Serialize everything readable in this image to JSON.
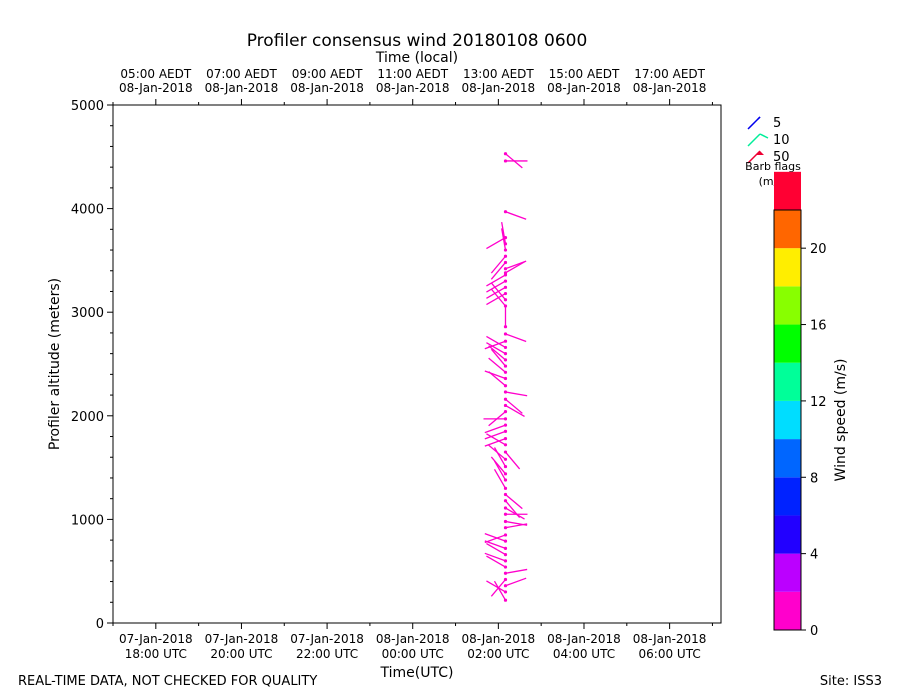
{
  "chart_data": {
    "type": "scatter",
    "title": "Profiler consensus wind 20180108 0600",
    "top_axis_label": "Time (local)",
    "xlabel": "Time(UTC)",
    "ylabel": "Profiler altitude (meters)",
    "ylim": [
      0,
      5000
    ],
    "y_ticks": [
      "0",
      "1000",
      "2000",
      "3000",
      "4000",
      "5000"
    ],
    "x_ticks_utc": [
      {
        "line1": "07-Jan-2018",
        "line2": "18:00 UTC"
      },
      {
        "line1": "07-Jan-2018",
        "line2": "20:00 UTC"
      },
      {
        "line1": "07-Jan-2018",
        "line2": "22:00 UTC"
      },
      {
        "line1": "08-Jan-2018",
        "line2": "00:00 UTC"
      },
      {
        "line1": "08-Jan-2018",
        "line2": "02:00 UTC"
      },
      {
        "line1": "08-Jan-2018",
        "line2": "04:00 UTC"
      },
      {
        "line1": "08-Jan-2018",
        "line2": "06:00 UTC"
      }
    ],
    "x_ticks_local": [
      {
        "line1": "05:00 AEDT",
        "line2": "08-Jan-2018"
      },
      {
        "line1": "07:00 AEDT",
        "line2": "08-Jan-2018"
      },
      {
        "line1": "09:00 AEDT",
        "line2": "08-Jan-2018"
      },
      {
        "line1": "11:00 AEDT",
        "line2": "08-Jan-2018"
      },
      {
        "line1": "13:00 AEDT",
        "line2": "08-Jan-2018"
      },
      {
        "line1": "15:00 AEDT",
        "line2": "08-Jan-2018"
      },
      {
        "line1": "17:00 AEDT",
        "line2": "08-Jan-2018"
      }
    ],
    "profile_time_utc": "08-Jan-2018 02:10 UTC",
    "barb_color": "#ff00cc",
    "barbs": [
      {
        "alt": 220,
        "dir": 330,
        "speed": 1
      },
      {
        "alt": 300,
        "dir": 300,
        "speed": 1
      },
      {
        "alt": 360,
        "dir": 70,
        "speed": 1
      },
      {
        "alt": 420,
        "dir": 220,
        "speed": 1
      },
      {
        "alt": 480,
        "dir": 80,
        "speed": 1
      },
      {
        "alt": 540,
        "dir": 300,
        "speed": 1
      },
      {
        "alt": 600,
        "dir": 290,
        "speed": 1
      },
      {
        "alt": 660,
        "dir": 300,
        "speed": 1
      },
      {
        "alt": 720,
        "dir": 290,
        "speed": 1
      },
      {
        "alt": 790,
        "dir": 290,
        "speed": 1
      },
      {
        "alt": 850,
        "dir": 250,
        "speed": 1
      },
      {
        "alt": 920,
        "dir": 80,
        "speed": 1
      },
      {
        "alt": 980,
        "dir": 100,
        "speed": 1
      },
      {
        "alt": 1050,
        "dir": 90,
        "speed": 1
      },
      {
        "alt": 1110,
        "dir": 120,
        "speed": 1
      },
      {
        "alt": 1180,
        "dir": 140,
        "speed": 1
      },
      {
        "alt": 1240,
        "dir": 130,
        "speed": 1
      },
      {
        "alt": 1300,
        "dir": 330,
        "speed": 1
      },
      {
        "alt": 1380,
        "dir": 330,
        "speed": 1
      },
      {
        "alt": 1440,
        "dir": 320,
        "speed": 1
      },
      {
        "alt": 1510,
        "dir": 330,
        "speed": 1
      },
      {
        "alt": 1580,
        "dir": 310,
        "speed": 1
      },
      {
        "alt": 1650,
        "dir": 140,
        "speed": 1
      },
      {
        "alt": 1720,
        "dir": 300,
        "speed": 1
      },
      {
        "alt": 1780,
        "dir": 250,
        "speed": 1
      },
      {
        "alt": 1850,
        "dir": 250,
        "speed": 1
      },
      {
        "alt": 1910,
        "dir": 250,
        "speed": 1
      },
      {
        "alt": 1970,
        "dir": 270,
        "speed": 1
      },
      {
        "alt": 2040,
        "dir": 230,
        "speed": 1
      },
      {
        "alt": 2100,
        "dir": 120,
        "speed": 1
      },
      {
        "alt": 2160,
        "dir": 130,
        "speed": 1
      },
      {
        "alt": 2230,
        "dir": 100,
        "speed": 1
      },
      {
        "alt": 2290,
        "dir": 310,
        "speed": 1
      },
      {
        "alt": 2360,
        "dir": 290,
        "speed": 1
      },
      {
        "alt": 2420,
        "dir": 310,
        "speed": 1
      },
      {
        "alt": 2480,
        "dir": 320,
        "speed": 1
      },
      {
        "alt": 2540,
        "dir": 310,
        "speed": 1
      },
      {
        "alt": 2600,
        "dir": 300,
        "speed": 1
      },
      {
        "alt": 2660,
        "dir": 300,
        "speed": 1
      },
      {
        "alt": 2720,
        "dir": 250,
        "speed": 1
      },
      {
        "alt": 2790,
        "dir": 110,
        "speed": 1
      },
      {
        "alt": 2860,
        "dir": 0,
        "speed": 1
      },
      {
        "alt": 3060,
        "dir": 320,
        "speed": 1
      },
      {
        "alt": 3120,
        "dir": 320,
        "speed": 1
      },
      {
        "alt": 3180,
        "dir": 240,
        "speed": 1
      },
      {
        "alt": 3240,
        "dir": 240,
        "speed": 1
      },
      {
        "alt": 3300,
        "dir": 240,
        "speed": 1
      },
      {
        "alt": 3360,
        "dir": 240,
        "speed": 1
      },
      {
        "alt": 3380,
        "dir": 60,
        "speed": 1
      },
      {
        "alt": 3420,
        "dir": 70,
        "speed": 1
      },
      {
        "alt": 3480,
        "dir": 220,
        "speed": 1
      },
      {
        "alt": 3540,
        "dir": 220,
        "speed": 1
      },
      {
        "alt": 3600,
        "dir": 350,
        "speed": 1
      },
      {
        "alt": 3660,
        "dir": 350,
        "speed": 1
      },
      {
        "alt": 3720,
        "dir": 240,
        "speed": 1
      },
      {
        "alt": 3970,
        "dir": 110,
        "speed": 1
      },
      {
        "alt": 4460,
        "dir": 90,
        "speed": 1
      },
      {
        "alt": 4530,
        "dir": 130,
        "speed": 1
      }
    ],
    "legend": {
      "items": [
        {
          "label": "5",
          "color": "#0000ee"
        },
        {
          "label": "10",
          "color": "#00ee99"
        },
        {
          "label": "50",
          "color": "#ee0033"
        }
      ],
      "title_line1": "Barb flags",
      "title_line2": "(m/s)",
      "placement": "right"
    },
    "colorbar": {
      "label": "Wind speed (m/s)",
      "range": [
        0,
        22
      ],
      "bin_width": 2,
      "colors": [
        "#ff00cc",
        "#bb00ff",
        "#2200ff",
        "#0022ff",
        "#0066ff",
        "#00ddff",
        "#00ff99",
        "#00ff00",
        "#88ff00",
        "#ffee00",
        "#ff6600",
        "#ff0033"
      ],
      "tick_values": [
        0,
        4,
        8,
        12,
        16,
        20
      ],
      "tick_labels": [
        "0",
        "4",
        "8",
        "12",
        "16",
        "20"
      ]
    }
  },
  "footer": {
    "left": "REAL-TIME DATA, NOT CHECKED FOR QUALITY",
    "right": "Site: ISS3"
  }
}
